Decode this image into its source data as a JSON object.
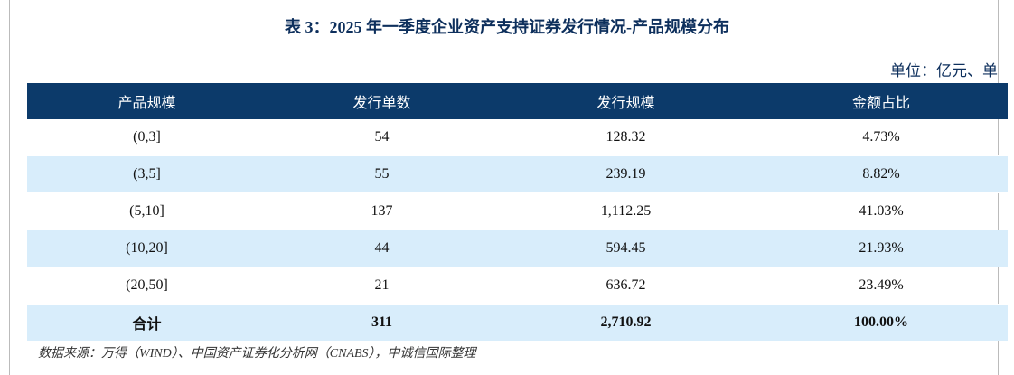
{
  "title": "表 3：2025 年一季度企业资产支持证券发行情况-产品规模分布",
  "unit": "单位：亿元、单",
  "table": {
    "columns": [
      "产品规模",
      "发行单数",
      "发行规模",
      "金额占比"
    ],
    "rows": [
      [
        "(0,3]",
        "54",
        "128.32",
        "4.73%"
      ],
      [
        "(3,5]",
        "55",
        "239.19",
        "8.82%"
      ],
      [
        "(5,10]",
        "137",
        "1,112.25",
        "41.03%"
      ],
      [
        "(10,20]",
        "44",
        "594.45",
        "21.93%"
      ],
      [
        "(20,50]",
        "21",
        "636.72",
        "23.49%"
      ]
    ],
    "total": [
      "合计",
      "311",
      "2,710.92",
      "100.00%"
    ]
  },
  "source": "数据来源：万得（WIND）、中国资产证券化分析网（CNABS），中诚信国际整理"
}
